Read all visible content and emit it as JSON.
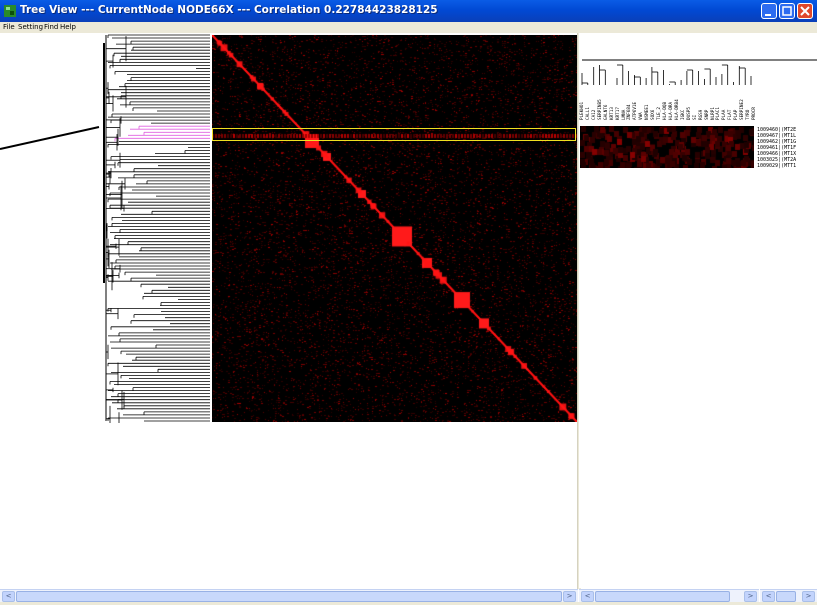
{
  "window": {
    "title": "Tree View --- CurrentNode NODE66X --- Correlation 0.22784423828125",
    "icon": "tree-app-icon",
    "controls": [
      "minimize-icon",
      "maximize-icon",
      "close-icon"
    ]
  },
  "menu": {
    "items": [
      "File",
      "Setting",
      "Find",
      "Help"
    ]
  },
  "colors": {
    "titlebar": "#0149d4",
    "heatmap_high": "#ff0000",
    "heatmap_bg": "#000000",
    "selection_box": "#f0e020",
    "selected_subtree": "#e060e0"
  },
  "array_labels": [
    "PLEKHO1",
    "CALL1",
    "CA12",
    "SERPINB5",
    "GALNT6",
    "KRT13",
    "KRT17",
    "LMNA",
    "ZNF684",
    "ATP6V1E",
    "VWA",
    "NSMEE1",
    "SOX6",
    "TLE_2",
    "HLA-DQB",
    "HLA-DRA",
    "HLA-DRB4",
    "IGKC",
    "DUSP5",
    "SI",
    "RGS9",
    "SNRP",
    "NLRP1",
    "PLAC1",
    "PLAA",
    "FLAT",
    "PLAP",
    "SERPINE2",
    "TYRO",
    "PROCR"
  ],
  "gene_labels": [
    "1009460|(MT2E",
    "1009467|(MT1L",
    "1009462|(MT1G",
    "1009461|(MT1F",
    "1009466|(MT1X",
    "1003025|(MT2A",
    "1009029|(MTT1"
  ],
  "scrollbars": {
    "left_arrow": "<",
    "right_arrow": ">"
  }
}
